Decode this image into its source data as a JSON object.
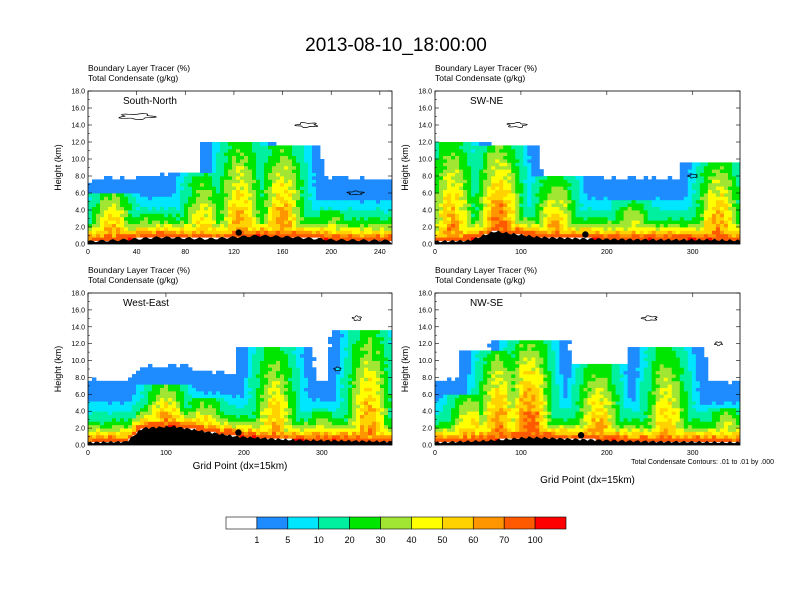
{
  "figure": {
    "title": "2013-08-10_18:00:00",
    "footnote": "Total Condensate Contours: .01 to .01 by .000"
  },
  "colors": {
    "levels": [
      "#ffffff",
      "#1e8cff",
      "#00e6ff",
      "#00f0a0",
      "#00e600",
      "#a0e632",
      "#ffff00",
      "#ffd200",
      "#ff9600",
      "#ff5a00",
      "#ff0000"
    ],
    "contour": "#000000",
    "terrain": "#000000",
    "marker": "#000000"
  },
  "colorbar": {
    "labels": [
      "1",
      "5",
      "10",
      "20",
      "30",
      "40",
      "50",
      "60",
      "70",
      "100"
    ]
  },
  "chart_data": [
    {
      "type": "heatmap",
      "name": "South-North",
      "panel_label": "South-North",
      "subtitle_1": "Boundary Layer Tracer    (%)",
      "subtitle_2": "Total Condensate    (g/kg)",
      "ylabel": "Height (km)",
      "xlabel": "",
      "xlim": [
        0,
        250
      ],
      "ylim": [
        0,
        18
      ],
      "x_ticks": [
        "0",
        "40",
        "80",
        "120",
        "160",
        "200",
        "240"
      ],
      "y_ticks": [
        "0.0",
        "2.0",
        "4.0",
        "6.0",
        "8.0",
        "10.0",
        "12.0",
        "14.0",
        "16.0",
        "18.0"
      ],
      "terrain": [
        [
          0,
          0.3
        ],
        [
          30,
          0.5
        ],
        [
          60,
          0.8
        ],
        [
          100,
          0.6
        ],
        [
          140,
          1.0
        ],
        [
          170,
          0.8
        ],
        [
          200,
          0.5
        ],
        [
          250,
          0.4
        ]
      ],
      "plumes": [
        [
          0,
          0.2,
          2.5,
          0.65
        ],
        [
          20,
          0.3,
          6.0,
          0.75
        ],
        [
          50,
          0.2,
          3.5,
          0.6
        ],
        [
          95,
          0.4,
          8.5,
          0.6
        ],
        [
          125,
          0.5,
          12.0,
          0.7
        ],
        [
          160,
          0.3,
          11.5,
          0.75
        ],
        [
          200,
          0.2,
          4.0,
          0.6
        ],
        [
          240,
          0.3,
          2.5,
          0.5
        ]
      ],
      "clouds": [
        [
          40,
          15,
          13,
          0.6
        ],
        [
          180,
          14,
          8,
          0.5
        ],
        [
          220,
          6,
          6,
          0.4
        ]
      ],
      "marker_x": 124
    },
    {
      "type": "heatmap",
      "name": "SW-NE",
      "panel_label": "SW-NE",
      "subtitle_1": "Boundary Layer Tracer    (%)",
      "subtitle_2": "Total Condensate    (g/kg)",
      "ylabel": "Height (km)",
      "xlabel": "",
      "xlim": [
        0,
        355
      ],
      "ylim": [
        0,
        18
      ],
      "x_ticks": [
        "0",
        "100",
        "200",
        "300"
      ],
      "y_ticks": [
        "0.0",
        "2.0",
        "4.0",
        "6.0",
        "8.0",
        "10.0",
        "12.0",
        "14.0",
        "16.0",
        "18.0"
      ],
      "terrain": [
        [
          0,
          0.3
        ],
        [
          40,
          0.4
        ],
        [
          70,
          1.5
        ],
        [
          90,
          1.2
        ],
        [
          120,
          0.8
        ],
        [
          180,
          0.6
        ],
        [
          260,
          0.5
        ],
        [
          320,
          0.5
        ],
        [
          355,
          0.4
        ]
      ],
      "plumes": [
        [
          20,
          0.3,
          12.0,
          0.7
        ],
        [
          75,
          0.6,
          11.5,
          0.85
        ],
        [
          140,
          0.4,
          8.0,
          0.7
        ],
        [
          230,
          0.3,
          5.0,
          0.6
        ],
        [
          330,
          0.3,
          9.5,
          0.75
        ]
      ],
      "clouds": [
        [
          95,
          14,
          10,
          0.5
        ],
        [
          300,
          8,
          5,
          0.4
        ]
      ],
      "marker_x": 175
    },
    {
      "type": "heatmap",
      "name": "West-East",
      "panel_label": "West-East",
      "subtitle_1": "Boundary Layer Tracer    (%)",
      "subtitle_2": "Total Condensate    (g/kg)",
      "ylabel": "Height (km)",
      "xlabel": "Grid Point (dx=15km)",
      "xlim": [
        0,
        390
      ],
      "ylim": [
        0,
        18
      ],
      "x_ticks": [
        "0",
        "100",
        "200",
        "300"
      ],
      "y_ticks": [
        "0.0",
        "2.0",
        "4.0",
        "6.0",
        "8.0",
        "10.0",
        "12.0",
        "14.0",
        "16.0",
        "18.0"
      ],
      "terrain": [
        [
          0,
          0.3
        ],
        [
          50,
          0.4
        ],
        [
          70,
          2.0
        ],
        [
          110,
          2.2
        ],
        [
          150,
          1.6
        ],
        [
          190,
          1.0
        ],
        [
          260,
          0.6
        ],
        [
          330,
          0.5
        ],
        [
          390,
          0.4
        ]
      ],
      "plumes": [
        [
          100,
          1.5,
          7.0,
          0.8
        ],
        [
          150,
          1.0,
          5.5,
          0.7
        ],
        [
          240,
          0.5,
          11.5,
          0.65
        ],
        [
          300,
          0.3,
          4.0,
          0.6
        ],
        [
          360,
          0.3,
          13.5,
          0.7
        ]
      ],
      "clouds": [
        [
          345,
          15,
          5,
          0.5
        ],
        [
          320,
          9,
          4,
          0.4
        ]
      ],
      "marker_x": 193
    },
    {
      "type": "heatmap",
      "name": "NW-SE",
      "panel_label": "NW-SE",
      "subtitle_1": "Boundary Layer Tracer    (%)",
      "subtitle_2": "Total Condensate    (g/kg)",
      "ylabel": "Height (km)",
      "xlabel": "Grid Point (dx=15km)",
      "xlim": [
        0,
        355
      ],
      "ylim": [
        0,
        18
      ],
      "x_ticks": [
        "0",
        "100",
        "200",
        "300"
      ],
      "y_ticks": [
        "0.0",
        "2.0",
        "4.0",
        "6.0",
        "8.0",
        "10.0",
        "12.0",
        "14.0",
        "16.0",
        "18.0"
      ],
      "terrain": [
        [
          0,
          0.3
        ],
        [
          60,
          0.5
        ],
        [
          110,
          0.9
        ],
        [
          160,
          0.7
        ],
        [
          210,
          0.5
        ],
        [
          260,
          0.4
        ],
        [
          355,
          0.3
        ]
      ],
      "plumes": [
        [
          40,
          0.3,
          6.0,
          0.7
        ],
        [
          75,
          0.5,
          11.0,
          0.75
        ],
        [
          110,
          0.6,
          12.5,
          0.85
        ],
        [
          190,
          0.4,
          9.5,
          0.7
        ],
        [
          270,
          0.3,
          11.5,
          0.65
        ],
        [
          340,
          0.3,
          4.5,
          0.6
        ]
      ],
      "clouds": [
        [
          250,
          15,
          8,
          0.5
        ],
        [
          330,
          12,
          4,
          0.4
        ]
      ],
      "marker_x": 170
    }
  ]
}
